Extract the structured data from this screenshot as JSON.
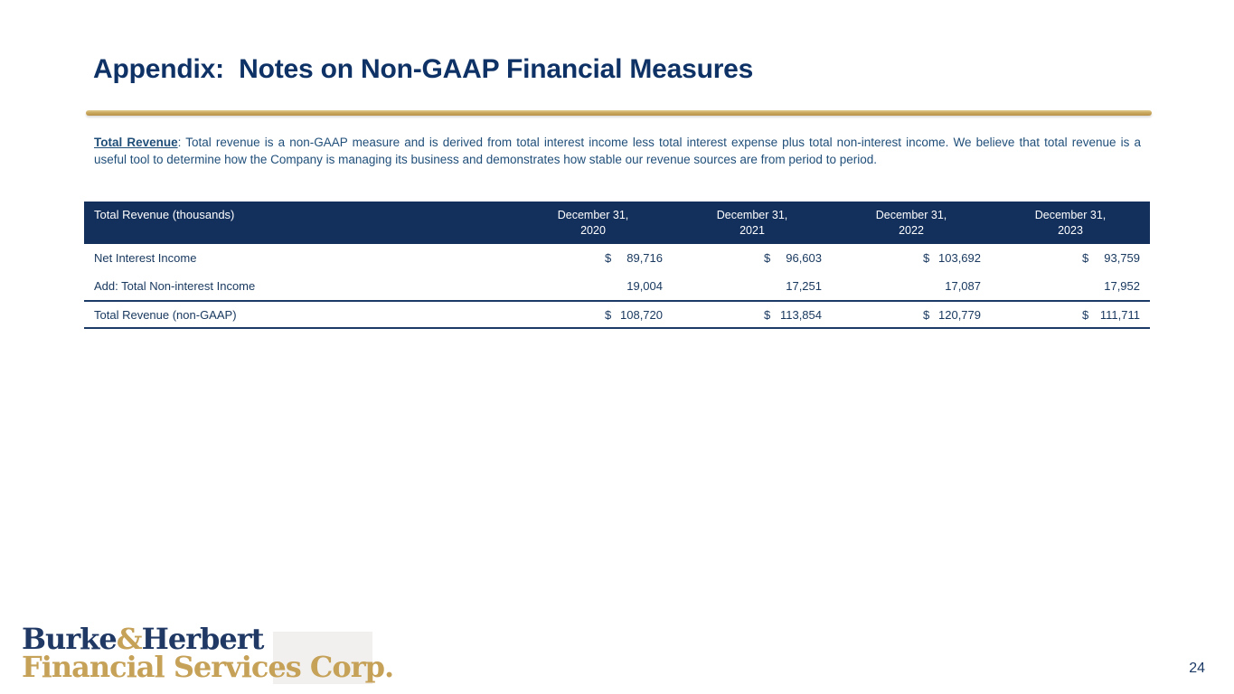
{
  "slide": {
    "title": "Appendix:  Notes on Non-GAAP Financial Measures",
    "page_number": "24"
  },
  "note": {
    "lead": "Total Revenue",
    "body": ": Total revenue is a non-GAAP measure and is derived from total interest income less total interest expense plus total non-interest income. We believe that total revenue is a useful tool to determine how the Company is managing its business and demonstrates how stable our revenue sources are from period to period."
  },
  "table": {
    "header_label": "Total Revenue (thousands)",
    "columns": [
      {
        "line1": "December 31,",
        "line2": "2020"
      },
      {
        "line1": "December 31,",
        "line2": "2021"
      },
      {
        "line1": "December 31,",
        "line2": "2022"
      },
      {
        "line1": "December 31,",
        "line2": "2023"
      }
    ],
    "rows": [
      {
        "label": "Net Interest Income",
        "cells": [
          {
            "currency": "$",
            "value": "89,716"
          },
          {
            "currency": "$",
            "value": "96,603"
          },
          {
            "currency": "$",
            "value": "103,692"
          },
          {
            "currency": "$",
            "value": "93,759"
          }
        ]
      },
      {
        "label": "Add: Total Non-interest Income",
        "cells": [
          {
            "currency": "",
            "value": "19,004"
          },
          {
            "currency": "",
            "value": "17,251"
          },
          {
            "currency": "",
            "value": "17,087"
          },
          {
            "currency": "",
            "value": "17,952"
          }
        ]
      },
      {
        "label": "Total Revenue (non-GAAP)",
        "cells": [
          {
            "currency": "$",
            "value": "108,720"
          },
          {
            "currency": "$",
            "value": "113,854"
          },
          {
            "currency": "$",
            "value": "120,779"
          },
          {
            "currency": "$",
            "value": "111,711"
          }
        ]
      }
    ]
  },
  "footer": {
    "logo_name_part1": "Burke",
    "logo_ampersand": "&",
    "logo_name_part2": "Herbert",
    "logo_line2": "Financial Services Corp."
  },
  "colors": {
    "title_navy": "#0e3266",
    "body_blue": "#1f4e79",
    "table_header_bg": "#132f5b",
    "table_text": "#17375e",
    "accent_gold": "#c9a85e",
    "logo_navy": "#1f3864",
    "logo_gold": "#c6a158"
  }
}
